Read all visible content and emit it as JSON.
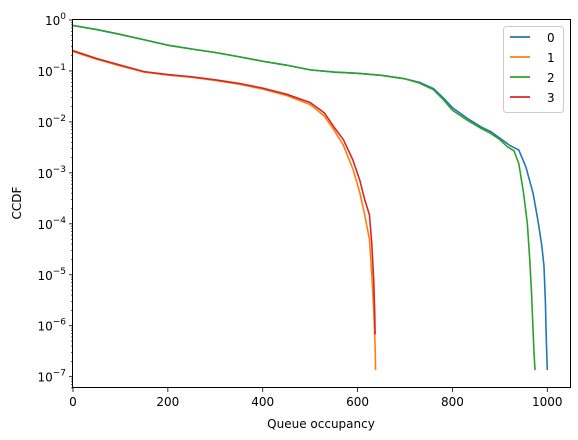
{
  "chart_data": {
    "type": "line",
    "title": "",
    "xlabel": "Queue occupancy",
    "ylabel": "CCDF",
    "xlim": [
      0,
      1050
    ],
    "ylim": [
      6e-08,
      1
    ],
    "yscale": "log",
    "grid": false,
    "legend_position": "top-right",
    "x_ticks": [
      {
        "value": 0,
        "label": "0"
      },
      {
        "value": 200,
        "label": "200"
      },
      {
        "value": 400,
        "label": "400"
      },
      {
        "value": 600,
        "label": "600"
      },
      {
        "value": 800,
        "label": "800"
      },
      {
        "value": 1000,
        "label": "1000"
      }
    ],
    "y_ticks": [
      {
        "value": 1e-07,
        "base": "10",
        "exp": "−7"
      },
      {
        "value": 1e-06,
        "base": "10",
        "exp": "−6"
      },
      {
        "value": 1e-05,
        "base": "10",
        "exp": "−5"
      },
      {
        "value": 0.0001,
        "base": "10",
        "exp": "−4"
      },
      {
        "value": 0.001,
        "base": "10",
        "exp": "−3"
      },
      {
        "value": 0.01,
        "base": "10",
        "exp": "−2"
      },
      {
        "value": 0.1,
        "base": "10",
        "exp": "−1"
      },
      {
        "value": 1,
        "base": "10",
        "exp": "0"
      }
    ],
    "series": [
      {
        "name": "0",
        "color": "#1f77b4",
        "x": [
          0,
          50,
          100,
          150,
          200,
          250,
          300,
          350,
          400,
          450,
          500,
          550,
          600,
          650,
          700,
          730,
          760,
          780,
          800,
          830,
          860,
          880,
          900,
          920,
          940,
          955,
          970,
          980,
          988,
          993,
          996,
          998,
          1000
        ],
        "y": [
          0.78,
          0.65,
          0.52,
          0.41,
          0.32,
          0.27,
          0.23,
          0.19,
          0.155,
          0.13,
          0.105,
          0.095,
          0.09,
          0.082,
          0.07,
          0.06,
          0.045,
          0.03,
          0.019,
          0.012,
          0.008,
          0.0065,
          0.0048,
          0.0035,
          0.0028,
          0.0013,
          0.0004,
          0.00012,
          4e-05,
          1.5e-05,
          3e-06,
          5e-07,
          1.4e-07
        ]
      },
      {
        "name": "1",
        "color": "#ff7f0e",
        "x": [
          0,
          50,
          100,
          150,
          200,
          250,
          300,
          350,
          400,
          450,
          500,
          530,
          550,
          570,
          590,
          605,
          615,
          625,
          630,
          634,
          637,
          638
        ],
        "y": [
          0.24,
          0.17,
          0.125,
          0.095,
          0.083,
          0.075,
          0.065,
          0.055,
          0.044,
          0.033,
          0.022,
          0.013,
          0.007,
          0.0035,
          0.0012,
          0.0004,
          0.00015,
          5e-05,
          1e-05,
          2e-06,
          4e-07,
          1.4e-07
        ]
      },
      {
        "name": "2",
        "color": "#2ca02c",
        "x": [
          0,
          50,
          100,
          150,
          200,
          250,
          300,
          350,
          400,
          450,
          500,
          550,
          600,
          650,
          700,
          730,
          760,
          780,
          800,
          830,
          860,
          880,
          900,
          915,
          930,
          940,
          950,
          958,
          963,
          967,
          970,
          972,
          974
        ],
        "y": [
          0.78,
          0.65,
          0.52,
          0.41,
          0.32,
          0.27,
          0.23,
          0.19,
          0.155,
          0.13,
          0.105,
          0.095,
          0.09,
          0.082,
          0.07,
          0.058,
          0.043,
          0.028,
          0.017,
          0.011,
          0.0075,
          0.006,
          0.0045,
          0.0033,
          0.0027,
          0.0015,
          0.0004,
          0.0001,
          2e-05,
          4e-06,
          8e-07,
          3e-07,
          1.4e-07
        ]
      },
      {
        "name": "3",
        "color": "#d62728",
        "x": [
          0,
          50,
          100,
          150,
          200,
          250,
          300,
          350,
          400,
          450,
          500,
          530,
          550,
          570,
          590,
          605,
          615,
          625,
          630,
          634,
          636,
          637
        ],
        "y": [
          0.25,
          0.175,
          0.13,
          0.097,
          0.085,
          0.077,
          0.067,
          0.057,
          0.046,
          0.035,
          0.024,
          0.015,
          0.008,
          0.0045,
          0.0018,
          0.0007,
          0.0003,
          0.00015,
          4e-05,
          8e-06,
          2e-06,
          7e-07
        ]
      }
    ]
  }
}
